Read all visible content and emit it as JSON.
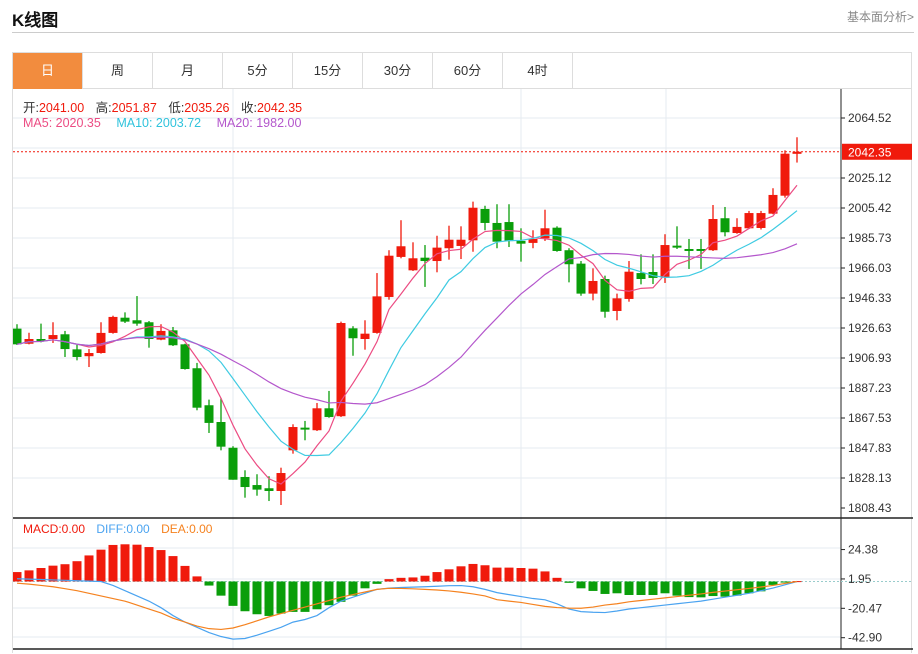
{
  "header": {
    "title": "K线图",
    "link": "基本面分析>"
  },
  "tabs": [
    {
      "label": "日",
      "active": true
    },
    {
      "label": "周"
    },
    {
      "label": "月"
    },
    {
      "label": "5分"
    },
    {
      "label": "15分"
    },
    {
      "label": "30分"
    },
    {
      "label": "60分"
    },
    {
      "label": "4时"
    }
  ],
  "ohlc_info": {
    "open_label": "开:",
    "open": "2041.00",
    "high_label": "高:",
    "high": "2051.87",
    "low_label": "低:",
    "low": "2035.26",
    "close_label": "收:",
    "close": "2042.35"
  },
  "ma_info": {
    "ma5": "MA5: 2020.35",
    "ma10": "MA10: 2003.72",
    "ma20": "MA20: 1982.00"
  },
  "macd_info": {
    "macd": "MACD:0.00",
    "diff": "DIFF:0.00",
    "dea": "DEA:0.00"
  },
  "colors": {
    "up": "#f01a0c",
    "down": "#0a9e0a",
    "ma5": "#ec4c83",
    "ma10": "#3fcbe2",
    "ma20": "#b457cc",
    "diff": "#4aa3f0",
    "dea": "#f5821f",
    "accent": "#f28c3e"
  },
  "chart_data": [
    {
      "type": "candlestick",
      "title": "K线图",
      "ylim": [
        1803,
        2070
      ],
      "y_ticks": [
        "2064.52",
        "2025.12",
        "2005.42",
        "1985.73",
        "1966.03",
        "1946.33",
        "1926.63",
        "1906.93",
        "1887.23",
        "1867.53",
        "1847.83",
        "1828.13",
        "1808.43"
      ],
      "current_price": "2042.35",
      "candles": [
        [
          1926.2,
          1915.9,
          1929.1,
          1915.5
        ],
        [
          1916.3,
          1919.4,
          1923.5,
          1915.9
        ],
        [
          1919.4,
          1918.1,
          1929.5,
          1917.2
        ],
        [
          1919.4,
          1922.0,
          1930.4,
          1916.8
        ],
        [
          1922.5,
          1912.8,
          1924.7,
          1907.6
        ],
        [
          1912.6,
          1907.6,
          1915.5,
          1905.4
        ],
        [
          1908.1,
          1910.2,
          1912.8,
          1901.0
        ],
        [
          1910.2,
          1923.4,
          1930.4,
          1909.8
        ],
        [
          1923.4,
          1933.9,
          1934.7,
          1922.9
        ],
        [
          1933.4,
          1930.8,
          1936.9,
          1929.9
        ],
        [
          1931.7,
          1929.5,
          1947.6,
          1928.1
        ],
        [
          1930.4,
          1919.4,
          1931.2,
          1913.7
        ],
        [
          1919.0,
          1924.7,
          1929.1,
          1918.6
        ],
        [
          1925.1,
          1915.3,
          1927.3,
          1914.8
        ],
        [
          1915.9,
          1899.7,
          1916.3,
          1899.3
        ],
        [
          1900.2,
          1874.3,
          1903.7,
          1872.6
        ],
        [
          1875.9,
          1864.3,
          1879.6,
          1857.7
        ],
        [
          1864.9,
          1848.7,
          1880.5,
          1846.3
        ],
        [
          1848.0,
          1827.0,
          1849.0,
          1827.0
        ],
        [
          1828.8,
          1822.2,
          1833.2,
          1815.2
        ],
        [
          1823.5,
          1820.5,
          1830.6,
          1816.5
        ],
        [
          1821.4,
          1819.6,
          1829.3,
          1813.0
        ],
        [
          1819.6,
          1831.4,
          1834.9,
          1810.4
        ],
        [
          1846.3,
          1861.6,
          1863.4,
          1844.1
        ],
        [
          1861.2,
          1859.9,
          1865.6,
          1852.9
        ],
        [
          1859.5,
          1873.9,
          1877.4,
          1859.0
        ],
        [
          1873.9,
          1868.2,
          1885.3,
          1867.7
        ],
        [
          1868.7,
          1929.9,
          1930.8,
          1868.2
        ],
        [
          1926.4,
          1919.9,
          1927.8,
          1908.4
        ],
        [
          1919.4,
          1922.9,
          1931.7,
          1912.4
        ],
        [
          1923.4,
          1947.4,
          1962.7,
          1922.9
        ],
        [
          1947.0,
          1974.1,
          1977.7,
          1945.2
        ],
        [
          1973.3,
          1980.3,
          1997.4,
          1972.4
        ],
        [
          1964.5,
          1972.4,
          1982.9,
          1964.1
        ],
        [
          1972.8,
          1970.6,
          1981.1,
          1953.6
        ],
        [
          1970.6,
          1979.4,
          1987.2,
          1963.2
        ],
        [
          1979.0,
          1984.6,
          1993.8,
          1971.5
        ],
        [
          1980.5,
          1984.6,
          1993.4,
          1971.9
        ],
        [
          1984.2,
          2005.6,
          2009.6,
          1976.7
        ],
        [
          2004.8,
          1995.6,
          2006.9,
          1990.8
        ],
        [
          1995.6,
          1983.3,
          2007.9,
          1979.0
        ],
        [
          1996.2,
          1983.7,
          2007.9,
          1979.8
        ],
        [
          1983.8,
          1982.0,
          1992.1,
          1970.2
        ],
        [
          1982.5,
          1985.1,
          1990.8,
          1979.0
        ],
        [
          1985.5,
          1992.1,
          2004.3,
          1983.8
        ],
        [
          1992.5,
          1977.2,
          1993.4,
          1976.7
        ],
        [
          1977.7,
          1968.5,
          1979.0,
          1956.6
        ],
        [
          1968.9,
          1949.2,
          1970.6,
          1947.8
        ],
        [
          1949.2,
          1957.5,
          1965.8,
          1944.8
        ],
        [
          1958.8,
          1937.3,
          1961.0,
          1933.4
        ],
        [
          1937.8,
          1946.1,
          1949.2,
          1931.7
        ],
        [
          1945.7,
          1963.6,
          1970.6,
          1943.9
        ],
        [
          1962.7,
          1958.8,
          1975.0,
          1955.3
        ],
        [
          1963.4,
          1959.5,
          1975.0,
          1955.5
        ],
        [
          1959.7,
          1981.1,
          1988.2,
          1956.2
        ],
        [
          1980.7,
          1979.4,
          1993.4,
          1978.5
        ],
        [
          1978.5,
          1977.2,
          1985.1,
          1965.4
        ],
        [
          1978.5,
          1977.2,
          1985.1,
          1965.4
        ],
        [
          1977.7,
          1998.2,
          2007.4,
          1977.2
        ],
        [
          1998.7,
          1989.5,
          2006.1,
          1986.8
        ],
        [
          1989.0,
          1993.0,
          1998.7,
          1988.5
        ],
        [
          1992.1,
          2002.1,
          2003.5,
          1991.6
        ],
        [
          1992.3,
          2002.1,
          2003.5,
          1991.3
        ],
        [
          2001.7,
          2014.0,
          2018.4,
          2001.3
        ],
        [
          2013.5,
          2041.1,
          2043.3,
          2012.2
        ],
        [
          2041.0,
          2042.35,
          2051.87,
          2035.26
        ]
      ]
    },
    {
      "type": "macd",
      "ylim": [
        -50,
        31
      ],
      "y_ticks": [
        "24.38",
        "1.95",
        "-20.47",
        "-42.90"
      ],
      "hist": [
        7.2,
        8.5,
        10.3,
        12.1,
        13.2,
        15.5,
        19.9,
        24.3,
        27.9,
        28.4,
        28.1,
        26.3,
        24.0,
        19.4,
        11.9,
        3.9,
        -3.1,
        -10.8,
        -18.6,
        -22.7,
        -25.0,
        -26.3,
        -24.5,
        -23.2,
        -23.2,
        -21.2,
        -18.1,
        -15.5,
        -10.8,
        -5.2,
        -1.8,
        1.8,
        2.8,
        3.1,
        4.4,
        7.2,
        9.3,
        11.6,
        13.4,
        12.4,
        10.6,
        10.6,
        10.3,
        9.8,
        7.7,
        2.8,
        -1.0,
        -5.2,
        -7.2,
        -9.5,
        -9.0,
        -10.3,
        -10.3,
        -10.3,
        -9.0,
        -10.8,
        -11.9,
        -12.1,
        -11.1,
        -11.6,
        -10.8,
        -9.0,
        -7.5,
        -2.6,
        -0.8,
        0.3
      ],
      "diff": [
        2.1,
        1.8,
        1.5,
        1.2,
        0.9,
        0.6,
        0.3,
        0,
        -3,
        -7,
        -11,
        -15,
        -20,
        -26,
        -31,
        -35,
        -39,
        -42,
        -44,
        -43.5,
        -41,
        -38,
        -35,
        -31,
        -29,
        -26,
        -20,
        -15,
        -12,
        -9,
        -6,
        -5,
        -4.6,
        -4.3,
        -4,
        -3.6,
        -3.2,
        -3.1,
        -4,
        -6,
        -8.5,
        -10,
        -11.5,
        -13,
        -14,
        -17,
        -21,
        -23,
        -23.5,
        -23.7,
        -22.5,
        -21,
        -20,
        -19,
        -18,
        -17,
        -16,
        -15,
        -13.5,
        -12,
        -10.5,
        -9,
        -7,
        -5,
        -2.5,
        0
      ],
      "dea": [
        -1.3,
        -2,
        -3,
        -4,
        -5.5,
        -7,
        -9,
        -11,
        -13,
        -15,
        -18,
        -21,
        -24,
        -28,
        -31,
        -34,
        -36,
        -36.6,
        -35.5,
        -33,
        -30,
        -27,
        -24.5,
        -22,
        -19.5,
        -17,
        -14.5,
        -12,
        -10,
        -8,
        -6,
        -5.2,
        -5.3,
        -5.6,
        -6,
        -6.5,
        -7.2,
        -8.2,
        -9.5,
        -11,
        -13.9,
        -15,
        -16,
        -17.5,
        -19,
        -19.9,
        -20.3,
        -20.4,
        -19.5,
        -18,
        -17,
        -15.5,
        -14.5,
        -13.5,
        -12.5,
        -11.5,
        -10.5,
        -9.5,
        -8.3,
        -7.3,
        -6.3,
        -5.3,
        -4.2,
        -3,
        -1.5,
        0
      ]
    }
  ]
}
